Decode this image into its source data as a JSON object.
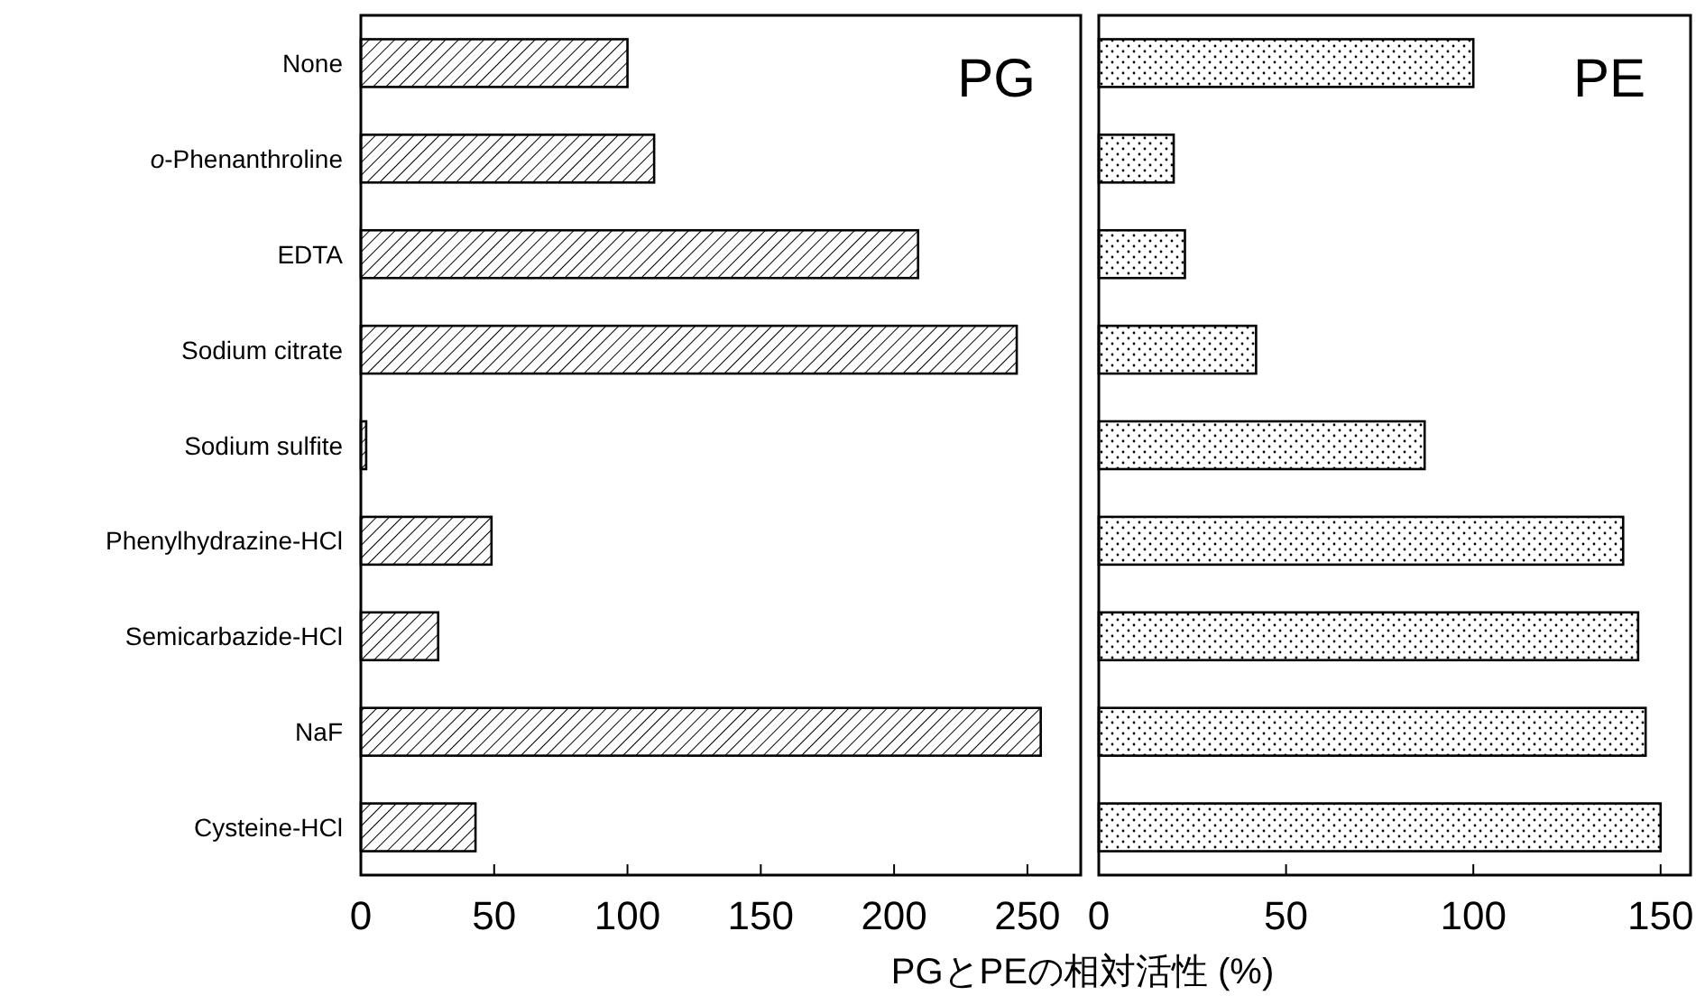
{
  "chart_data": [
    {
      "type": "bar",
      "orientation": "horizontal",
      "categories": [
        "None",
        "*o*-Phenanthroline",
        "EDTA",
        "Sodium citrate",
        "Sodium sulfite",
        "Phenylhydrazine-HCl",
        "Semicarbazide-HCl",
        "NaF",
        "Cysteine-HCl"
      ],
      "values": [
        100,
        110,
        209,
        246,
        2,
        49,
        29,
        255,
        43
      ],
      "color": "#000000",
      "xlim": [
        0,
        270
      ],
      "xticks": [
        0,
        50,
        100,
        150,
        200,
        250
      ],
      "annotations": [
        "PG"
      ],
      "xlabel": "PGとPEの相対活性 (%)"
    },
    {
      "type": "bar",
      "orientation": "horizontal",
      "categories": [
        null,
        null,
        null,
        null,
        null,
        null,
        null,
        null,
        null
      ],
      "values": [
        100,
        20,
        23,
        42,
        87,
        140,
        144,
        146,
        150
      ],
      "color": "#000000",
      "xlim": [
        0,
        158
      ],
      "xticks": [
        0,
        50,
        100,
        150
      ],
      "annotations": [
        "PE"
      ]
    }
  ]
}
